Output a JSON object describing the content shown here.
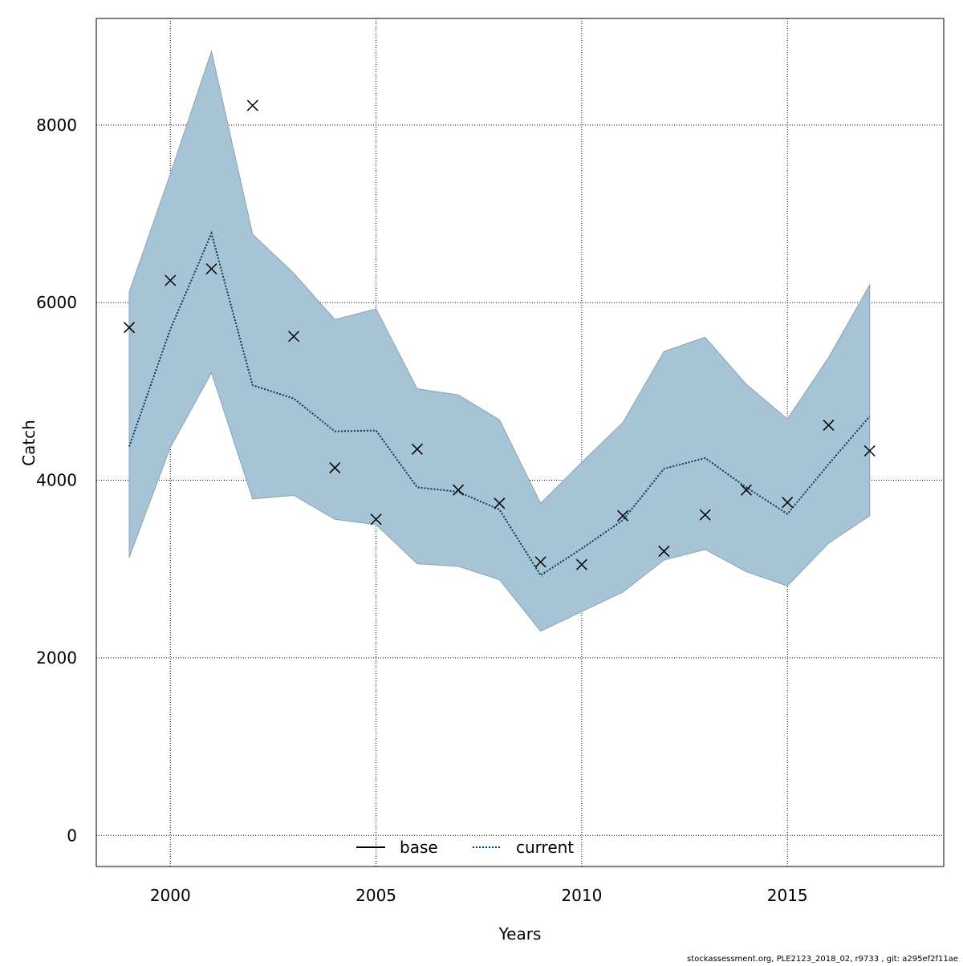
{
  "chart_data": {
    "type": "line",
    "xlabel": "Years",
    "ylabel": "Catch",
    "xlim": [
      1998.2,
      2018.8
    ],
    "ylim": [
      -350,
      9200
    ],
    "x_ticks": [
      2000,
      2005,
      2010,
      2015
    ],
    "y_ticks": [
      0,
      2000,
      4000,
      6000,
      8000
    ],
    "grid": true,
    "legend_position": "bottom-center",
    "band_color": "#a6c4d6",
    "band_stroke": "#8aa3b3",
    "series_color": "#003a5c",
    "x": [
      1999,
      2000,
      2001,
      2002,
      2003,
      2004,
      2005,
      2006,
      2007,
      2008,
      2009,
      2010,
      2011,
      2012,
      2013,
      2014,
      2015,
      2016,
      2017
    ],
    "series": [
      {
        "name": "base",
        "line_style": "solid",
        "values": [
          4380,
          5700,
          6780,
          5070,
          4920,
          4550,
          4560,
          3920,
          3870,
          3670,
          2930,
          3230,
          3550,
          4130,
          4250,
          3920,
          3620,
          4180,
          4720
        ]
      },
      {
        "name": "current",
        "line_style": "dotted",
        "values": [
          4380,
          5700,
          6780,
          5070,
          4920,
          4550,
          4560,
          3920,
          3870,
          3670,
          2930,
          3230,
          3550,
          4130,
          4250,
          3920,
          3620,
          4180,
          4720
        ]
      }
    ],
    "band": {
      "upper": [
        6120,
        7450,
        8830,
        6770,
        6330,
        5810,
        5930,
        5030,
        4960,
        4680,
        3740,
        4200,
        4650,
        5450,
        5610,
        5080,
        4690,
        5380,
        6200
      ],
      "lower": [
        3130,
        4370,
        5210,
        3790,
        3830,
        3560,
        3500,
        3060,
        3030,
        2880,
        2300,
        2520,
        2740,
        3100,
        3220,
        2970,
        2810,
        3290,
        3600
      ]
    },
    "observations": [
      {
        "x": 1999,
        "y": 5720
      },
      {
        "x": 2000,
        "y": 6250
      },
      {
        "x": 2001,
        "y": 6380
      },
      {
        "x": 2002,
        "y": 8220
      },
      {
        "x": 2003,
        "y": 5620
      },
      {
        "x": 2004,
        "y": 4140
      },
      {
        "x": 2005,
        "y": 3560
      },
      {
        "x": 2006,
        "y": 4350
      },
      {
        "x": 2007,
        "y": 3890
      },
      {
        "x": 2008,
        "y": 3740
      },
      {
        "x": 2009,
        "y": 3080
      },
      {
        "x": 2010,
        "y": 3050
      },
      {
        "x": 2011,
        "y": 3600
      },
      {
        "x": 2012,
        "y": 3200
      },
      {
        "x": 2013,
        "y": 3610
      },
      {
        "x": 2014,
        "y": 3890
      },
      {
        "x": 2015,
        "y": 3750
      },
      {
        "x": 2016,
        "y": 4620
      },
      {
        "x": 2017,
        "y": 4330
      }
    ]
  },
  "footer": {
    "note": "stockassessment.org, PLE2123_2018_02, r9733 , git: a295ef2f11ae"
  }
}
